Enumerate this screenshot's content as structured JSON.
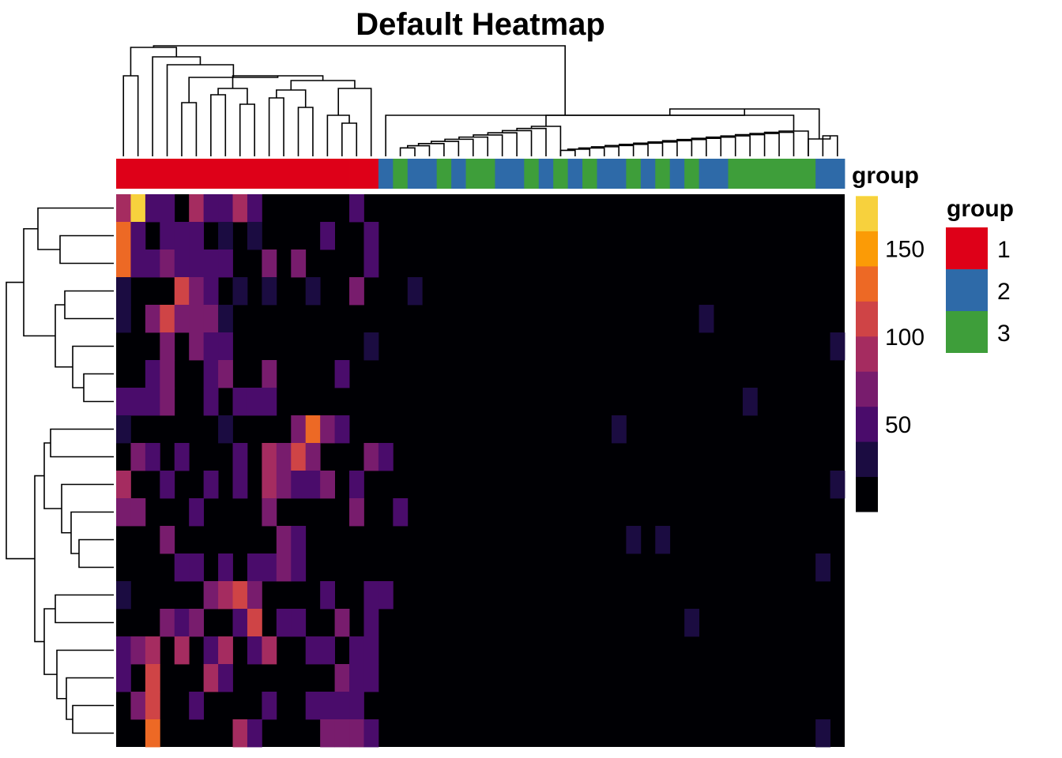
{
  "chart_data": {
    "type": "heatmap",
    "title": "Default Heatmap",
    "annotation_label": "group",
    "n_rows": 20,
    "n_cols": 50,
    "col_groups": [
      1,
      1,
      1,
      1,
      1,
      1,
      1,
      1,
      1,
      1,
      1,
      1,
      1,
      1,
      1,
      1,
      1,
      1,
      2,
      3,
      2,
      2,
      3,
      2,
      3,
      3,
      2,
      2,
      3,
      2,
      3,
      2,
      3,
      2,
      2,
      3,
      2,
      3,
      2,
      3,
      2,
      2,
      3,
      3,
      3,
      3,
      3,
      3,
      2,
      2
    ],
    "cells": [
      [
        [
          0,
          80
        ],
        [
          1,
          160
        ],
        [
          2,
          40
        ],
        [
          3,
          40
        ],
        [
          5,
          80
        ],
        [
          6,
          40
        ],
        [
          7,
          50
        ],
        [
          8,
          80
        ],
        [
          9,
          40
        ],
        [
          16,
          40
        ]
      ],
      [
        [
          0,
          120
        ],
        [
          1,
          50
        ],
        [
          3,
          40
        ],
        [
          4,
          40
        ],
        [
          5,
          40
        ],
        [
          7,
          30
        ],
        [
          9,
          30
        ],
        [
          14,
          40
        ],
        [
          17,
          40
        ]
      ],
      [
        [
          0,
          120
        ],
        [
          1,
          40
        ],
        [
          2,
          40
        ],
        [
          3,
          60
        ],
        [
          4,
          50
        ],
        [
          5,
          40
        ],
        [
          6,
          40
        ],
        [
          7,
          40
        ],
        [
          10,
          70
        ],
        [
          12,
          60
        ],
        [
          17,
          40
        ]
      ],
      [
        [
          0,
          30
        ],
        [
          4,
          100
        ],
        [
          5,
          60
        ],
        [
          6,
          40
        ],
        [
          8,
          30
        ],
        [
          10,
          30
        ],
        [
          13,
          30
        ],
        [
          16,
          60
        ],
        [
          20,
          30
        ]
      ],
      [
        [
          0,
          30
        ],
        [
          2,
          60
        ],
        [
          3,
          110
        ],
        [
          4,
          60
        ],
        [
          5,
          70
        ],
        [
          6,
          70
        ],
        [
          7,
          30
        ],
        [
          40,
          30
        ]
      ],
      [
        [
          3,
          60
        ],
        [
          5,
          60
        ],
        [
          6,
          40
        ],
        [
          7,
          40
        ],
        [
          17,
          30
        ],
        [
          49,
          30
        ]
      ],
      [
        [
          2,
          40
        ],
        [
          3,
          70
        ],
        [
          6,
          40
        ],
        [
          7,
          60
        ],
        [
          10,
          60
        ],
        [
          15,
          40
        ]
      ],
      [
        [
          0,
          40
        ],
        [
          1,
          40
        ],
        [
          2,
          40
        ],
        [
          3,
          70
        ],
        [
          6,
          40
        ],
        [
          8,
          40
        ],
        [
          9,
          40
        ],
        [
          10,
          40
        ],
        [
          43,
          30
        ]
      ],
      [
        [
          0,
          30
        ],
        [
          7,
          30
        ],
        [
          12,
          60
        ],
        [
          13,
          120
        ],
        [
          14,
          60
        ],
        [
          15,
          40
        ],
        [
          34,
          30
        ]
      ],
      [
        [
          1,
          60
        ],
        [
          2,
          40
        ],
        [
          4,
          40
        ],
        [
          8,
          40
        ],
        [
          10,
          80
        ],
        [
          11,
          60
        ],
        [
          12,
          110
        ],
        [
          13,
          60
        ],
        [
          17,
          60
        ],
        [
          18,
          40
        ]
      ],
      [
        [
          0,
          80
        ],
        [
          3,
          40
        ],
        [
          6,
          40
        ],
        [
          8,
          40
        ],
        [
          10,
          80
        ],
        [
          11,
          70
        ],
        [
          12,
          40
        ],
        [
          13,
          40
        ],
        [
          14,
          70
        ],
        [
          16,
          40
        ],
        [
          49,
          30
        ]
      ],
      [
        [
          0,
          60
        ],
        [
          1,
          60
        ],
        [
          5,
          40
        ],
        [
          10,
          60
        ],
        [
          16,
          60
        ],
        [
          19,
          40
        ]
      ],
      [
        [
          3,
          70
        ],
        [
          11,
          60
        ],
        [
          12,
          40
        ],
        [
          35,
          30
        ],
        [
          37,
          30
        ]
      ],
      [
        [
          4,
          40
        ],
        [
          5,
          40
        ],
        [
          7,
          40
        ],
        [
          9,
          40
        ],
        [
          10,
          40
        ],
        [
          11,
          60
        ],
        [
          12,
          40
        ],
        [
          48,
          30
        ]
      ],
      [
        [
          0,
          30
        ],
        [
          6,
          60
        ],
        [
          7,
          80
        ],
        [
          8,
          110
        ],
        [
          9,
          60
        ],
        [
          14,
          40
        ],
        [
          17,
          40
        ],
        [
          18,
          40
        ]
      ],
      [
        [
          3,
          60
        ],
        [
          4,
          40
        ],
        [
          5,
          60
        ],
        [
          8,
          40
        ],
        [
          9,
          110
        ],
        [
          11,
          40
        ],
        [
          12,
          40
        ],
        [
          15,
          60
        ],
        [
          17,
          40
        ],
        [
          39,
          30
        ]
      ],
      [
        [
          0,
          40
        ],
        [
          1,
          60
        ],
        [
          2,
          90
        ],
        [
          4,
          80
        ],
        [
          6,
          40
        ],
        [
          7,
          90
        ],
        [
          9,
          40
        ],
        [
          10,
          80
        ],
        [
          13,
          40
        ],
        [
          14,
          40
        ],
        [
          16,
          40
        ],
        [
          17,
          40
        ]
      ],
      [
        [
          0,
          40
        ],
        [
          2,
          100
        ],
        [
          6,
          80
        ],
        [
          7,
          40
        ],
        [
          15,
          60
        ],
        [
          16,
          40
        ],
        [
          17,
          40
        ]
      ],
      [
        [
          1,
          60
        ],
        [
          2,
          100
        ],
        [
          5,
          40
        ],
        [
          10,
          40
        ],
        [
          13,
          40
        ],
        [
          14,
          40
        ],
        [
          15,
          40
        ],
        [
          16,
          40
        ]
      ],
      [
        [
          2,
          120
        ],
        [
          8,
          80
        ],
        [
          9,
          40
        ],
        [
          14,
          60
        ],
        [
          15,
          60
        ],
        [
          16,
          60
        ],
        [
          17,
          40
        ],
        [
          48,
          30
        ]
      ]
    ],
    "color_scale": {
      "breaks": [
        0,
        20,
        40,
        60,
        80,
        100,
        120,
        140,
        160,
        180
      ],
      "colors": [
        "#000004",
        "#1b0c41",
        "#4a0c6b",
        "#781c6d",
        "#a52c60",
        "#cf4446",
        "#ed6925",
        "#fb9b06",
        "#f7d13d",
        "#fcffa4"
      ],
      "ticks": [
        {
          "value": 50,
          "label": "50"
        },
        {
          "value": 100,
          "label": "100"
        },
        {
          "value": 150,
          "label": "150"
        }
      ]
    },
    "legend": {
      "title": "group",
      "placement": "right",
      "items": [
        {
          "label": "1",
          "color": "#de0018"
        },
        {
          "label": "2",
          "color": "#2e6aa8"
        },
        {
          "label": "3",
          "color": "#3e9e3a"
        }
      ]
    },
    "dendrograms": {
      "rows": true,
      "columns": true
    }
  }
}
